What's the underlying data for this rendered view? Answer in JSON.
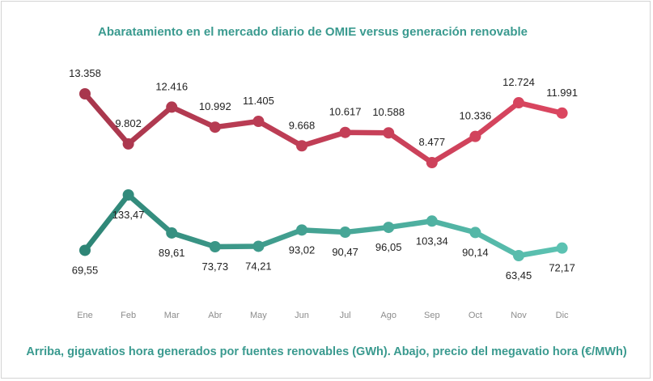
{
  "title": "Abaratamiento en el mercado diario de OMIE versus generación renovable",
  "caption": "Arriba, gigavatios hora generados por fuentes renovables (GWh). Abajo, precio del megavatio hora (€/MWh)",
  "colors": {
    "title": "#3a9a8f",
    "renewables_dark": "#a8374d",
    "renewables_light": "#db4660",
    "price_dark": "#2e8576",
    "price_light": "#5cc2b2"
  },
  "chart_data": [
    {
      "type": "line",
      "x": [
        "Ene",
        "Feb",
        "Mar",
        "Abr",
        "May",
        "Jun",
        "Jul",
        "Ago",
        "Sep",
        "Oct",
        "Nov",
        "Dic"
      ],
      "series": [
        {
          "values": [
            13358,
            9802,
            12416,
            10992,
            11405,
            9668,
            10617,
            10588,
            8477,
            10336,
            12724,
            11991
          ],
          "labels": [
            "13.358",
            "9.802",
            "12.416",
            "10.992",
            "11.405",
            "9.668",
            "10.617",
            "10.588",
            "8.477",
            "10.336",
            "12.724",
            "11.991"
          ],
          "label_position": "above"
        }
      ],
      "grid": false
    },
    {
      "type": "line",
      "x": [
        "Ene",
        "Feb",
        "Mar",
        "Abr",
        "May",
        "Jun",
        "Jul",
        "Ago",
        "Sep",
        "Oct",
        "Nov",
        "Dic"
      ],
      "series": [
        {
          "values": [
            69.55,
            133.47,
            89.61,
            73.73,
            74.21,
            93.02,
            90.47,
            96.05,
            103.34,
            90.14,
            63.45,
            72.17
          ],
          "labels": [
            "69,55",
            "133,47",
            "89,61",
            "73,73",
            "74,21",
            "93,02",
            "90,47",
            "96,05",
            "103,34",
            "90,14",
            "63,45",
            "72,17"
          ],
          "label_position": "below"
        }
      ],
      "grid": false
    }
  ]
}
